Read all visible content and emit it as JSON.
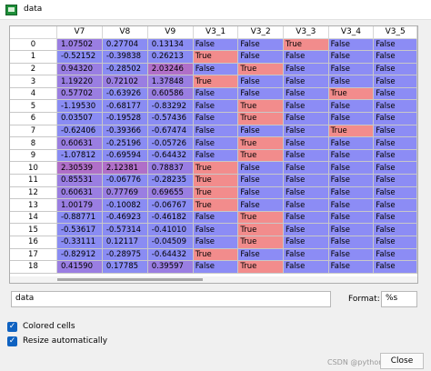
{
  "window": {
    "title": "data"
  },
  "table": {
    "columns": [
      "V7",
      "V8",
      "V9",
      "V3_1",
      "V3_2",
      "V3_3",
      "V3_4",
      "V3_5"
    ],
    "rows": [
      {
        "index": "0",
        "cells": [
          "1.07502",
          "0.27704",
          "0.13134",
          "False",
          "False",
          "True",
          "False",
          "False"
        ]
      },
      {
        "index": "1",
        "cells": [
          "-0.52152",
          "-0.39838",
          "0.26213",
          "True",
          "False",
          "False",
          "False",
          "False"
        ]
      },
      {
        "index": "2",
        "cells": [
          "0.94320",
          "-0.28502",
          "2.03246",
          "False",
          "True",
          "False",
          "False",
          "False"
        ]
      },
      {
        "index": "3",
        "cells": [
          "1.19220",
          "0.72102",
          "1.37848",
          "True",
          "False",
          "False",
          "False",
          "False"
        ]
      },
      {
        "index": "4",
        "cells": [
          "0.57702",
          "-0.63926",
          "0.60586",
          "False",
          "False",
          "False",
          "True",
          "False"
        ]
      },
      {
        "index": "5",
        "cells": [
          "-1.19530",
          "-0.68177",
          "-0.83292",
          "False",
          "True",
          "False",
          "False",
          "False"
        ]
      },
      {
        "index": "6",
        "cells": [
          "0.03507",
          "-0.19528",
          "-0.57436",
          "False",
          "True",
          "False",
          "False",
          "False"
        ]
      },
      {
        "index": "7",
        "cells": [
          "-0.62406",
          "-0.39366",
          "-0.67474",
          "False",
          "False",
          "False",
          "True",
          "False"
        ]
      },
      {
        "index": "8",
        "cells": [
          "0.60631",
          "-0.25196",
          "-0.05726",
          "False",
          "True",
          "False",
          "False",
          "False"
        ]
      },
      {
        "index": "9",
        "cells": [
          "-1.07812",
          "-0.69594",
          "-0.64432",
          "False",
          "True",
          "False",
          "False",
          "False"
        ]
      },
      {
        "index": "10",
        "cells": [
          "2.30539",
          "2.12381",
          "0.78837",
          "True",
          "False",
          "False",
          "False",
          "False"
        ]
      },
      {
        "index": "11",
        "cells": [
          "0.85531",
          "-0.06776",
          "-0.28235",
          "True",
          "False",
          "False",
          "False",
          "False"
        ]
      },
      {
        "index": "12",
        "cells": [
          "0.60631",
          "0.77769",
          "0.69655",
          "True",
          "False",
          "False",
          "False",
          "False"
        ]
      },
      {
        "index": "13",
        "cells": [
          "1.00179",
          "-0.10082",
          "-0.06767",
          "True",
          "False",
          "False",
          "False",
          "False"
        ]
      },
      {
        "index": "14",
        "cells": [
          "-0.88771",
          "-0.46923",
          "-0.46182",
          "False",
          "True",
          "False",
          "False",
          "False"
        ]
      },
      {
        "index": "15",
        "cells": [
          "-0.53617",
          "-0.57314",
          "-0.41010",
          "False",
          "True",
          "False",
          "False",
          "False"
        ]
      },
      {
        "index": "16",
        "cells": [
          "-0.33111",
          "0.12117",
          "-0.04509",
          "False",
          "True",
          "False",
          "False",
          "False"
        ]
      },
      {
        "index": "17",
        "cells": [
          "-0.82912",
          "-0.28975",
          "-0.64432",
          "True",
          "False",
          "False",
          "False",
          "False"
        ]
      },
      {
        "index": "18",
        "cells": [
          "0.41590",
          "0.17785",
          "0.39597",
          "False",
          "True",
          "False",
          "False",
          "False"
        ]
      }
    ]
  },
  "colors": {
    "false_bg": "#8c8cf5",
    "true_bg": "#f28c8c",
    "num_high": "#b06fc8",
    "num_mid": "#9a7ee2",
    "num_low": "#8a8cf3"
  },
  "footer": {
    "name_value": "data",
    "format_label": "Format:",
    "format_value": "%s",
    "colored_cells_label": "Colored cells",
    "resize_label": "Resize automatically",
    "close_label": "Close",
    "watermark": "CSDN @pythonML_E5ML"
  }
}
